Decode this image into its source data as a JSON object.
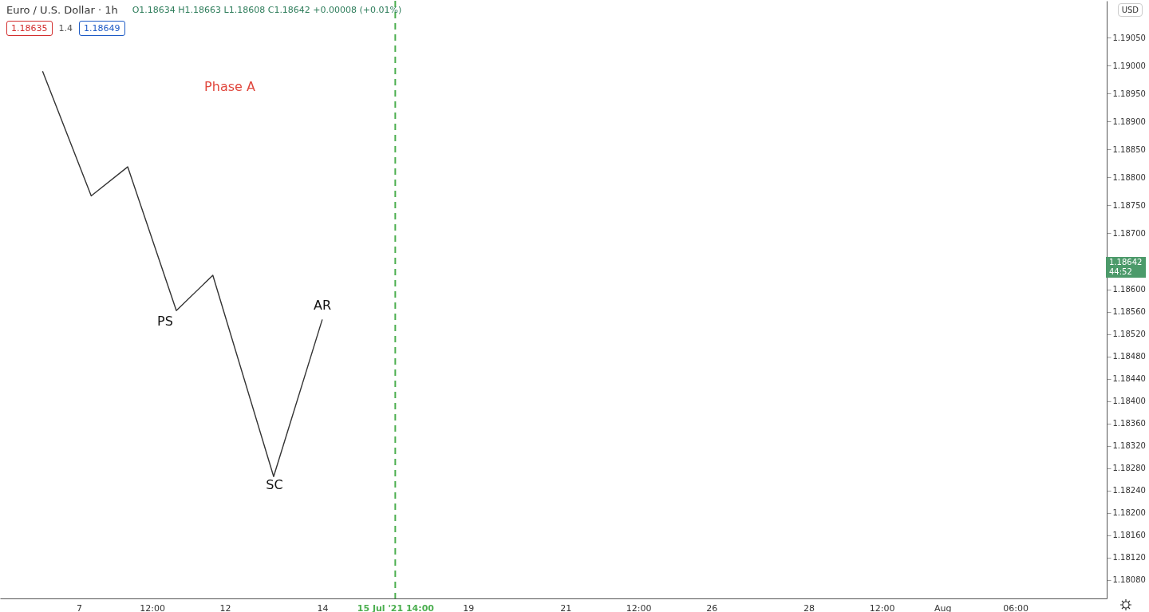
{
  "chart_data": {
    "type": "line",
    "title": "Euro / U.S. Dollar · 1h",
    "categories": [
      null,
      null,
      null,
      null,
      null,
      null,
      "7",
      null,
      null,
      null,
      null,
      null,
      "12:00",
      null,
      null,
      null,
      null,
      null,
      "12",
      null,
      null,
      null,
      null,
      null,
      null,
      null,
      "14",
      null,
      null,
      null,
      null,
      null,
      "15 Jul '21  14:00",
      null,
      null,
      null,
      null,
      null,
      "19",
      null,
      null,
      null,
      null,
      null,
      null,
      null,
      "21",
      null,
      null,
      null,
      null,
      null,
      "12:00",
      null,
      null,
      null,
      null,
      null,
      "26",
      null,
      null,
      null,
      null,
      null,
      null,
      null,
      "28",
      null,
      null,
      null,
      null,
      null,
      "12:00",
      null,
      null,
      null,
      null,
      "Aug",
      null,
      null,
      null,
      null,
      null,
      "06:00",
      null,
      null,
      null,
      null,
      null,
      null,
      null
    ],
    "series": [
      {
        "color": "#333333",
        "values": [
          null,
          null,
          null,
          1.1899,
          null,
          null,
          null,
          1.18767,
          null,
          null,
          1.18819,
          null,
          null,
          null,
          1.18562,
          null,
          null,
          1.18625,
          null,
          null,
          null,
          null,
          1.18265,
          null,
          null,
          null,
          1.18546,
          null,
          null,
          null,
          null,
          null,
          null,
          null,
          null,
          null,
          null,
          null,
          null,
          null,
          null,
          null,
          null,
          null,
          null,
          null,
          null,
          null,
          null,
          null,
          null,
          null,
          null,
          null,
          null,
          null,
          null,
          null,
          null,
          null,
          null,
          null,
          null,
          null,
          null,
          null,
          null,
          null,
          null,
          null,
          null,
          null,
          null,
          null,
          null,
          null,
          null,
          null,
          null,
          null,
          null,
          null,
          null,
          null,
          null,
          null,
          null,
          null,
          null,
          null,
          null
        ]
      }
    ],
    "ylim": [
      1.18047,
      1.19116
    ],
    "yticks": [
      {
        "value": 1.1905,
        "label": "1.19050"
      },
      {
        "value": 1.19,
        "label": "1.19000"
      },
      {
        "value": 1.1895,
        "label": "1.18950"
      },
      {
        "value": 1.189,
        "label": "1.18900"
      },
      {
        "value": 1.1885,
        "label": "1.18850"
      },
      {
        "value": 1.188,
        "label": "1.18800"
      },
      {
        "value": 1.1875,
        "label": "1.18750"
      },
      {
        "value": 1.187,
        "label": "1.18700"
      },
      {
        "value": 1.186,
        "label": "1.18600"
      },
      {
        "value": 1.1856,
        "label": "1.18560"
      },
      {
        "value": 1.1852,
        "label": "1.18520"
      },
      {
        "value": 1.1848,
        "label": "1.18480"
      },
      {
        "value": 1.1844,
        "label": "1.18440"
      },
      {
        "value": 1.184,
        "label": "1.18400"
      },
      {
        "value": 1.1836,
        "label": "1.18360"
      },
      {
        "value": 1.1832,
        "label": "1.18320"
      },
      {
        "value": 1.1828,
        "label": "1.18280"
      },
      {
        "value": 1.1824,
        "label": "1.18240"
      },
      {
        "value": 1.182,
        "label": "1.18200"
      },
      {
        "value": 1.1816,
        "label": "1.18160"
      },
      {
        "value": 1.1812,
        "label": "1.18120"
      },
      {
        "value": 1.1808,
        "label": "1.18080"
      }
    ],
    "grid": false,
    "ref_lines": [
      {
        "axis": "x",
        "value": "15 Jul '21  14:00",
        "color": "#4caf50",
        "line_style": "dashed"
      }
    ],
    "annotations": [
      "O1.18634 H1.18663 L1.18608 C1.18642 +0.00008 (+0.01%)",
      "1.18635",
      "1.4",
      "1.18649",
      "USD",
      "Phase A",
      "PS",
      "SC",
      "AR",
      "1.18642",
      "44:52"
    ]
  }
}
